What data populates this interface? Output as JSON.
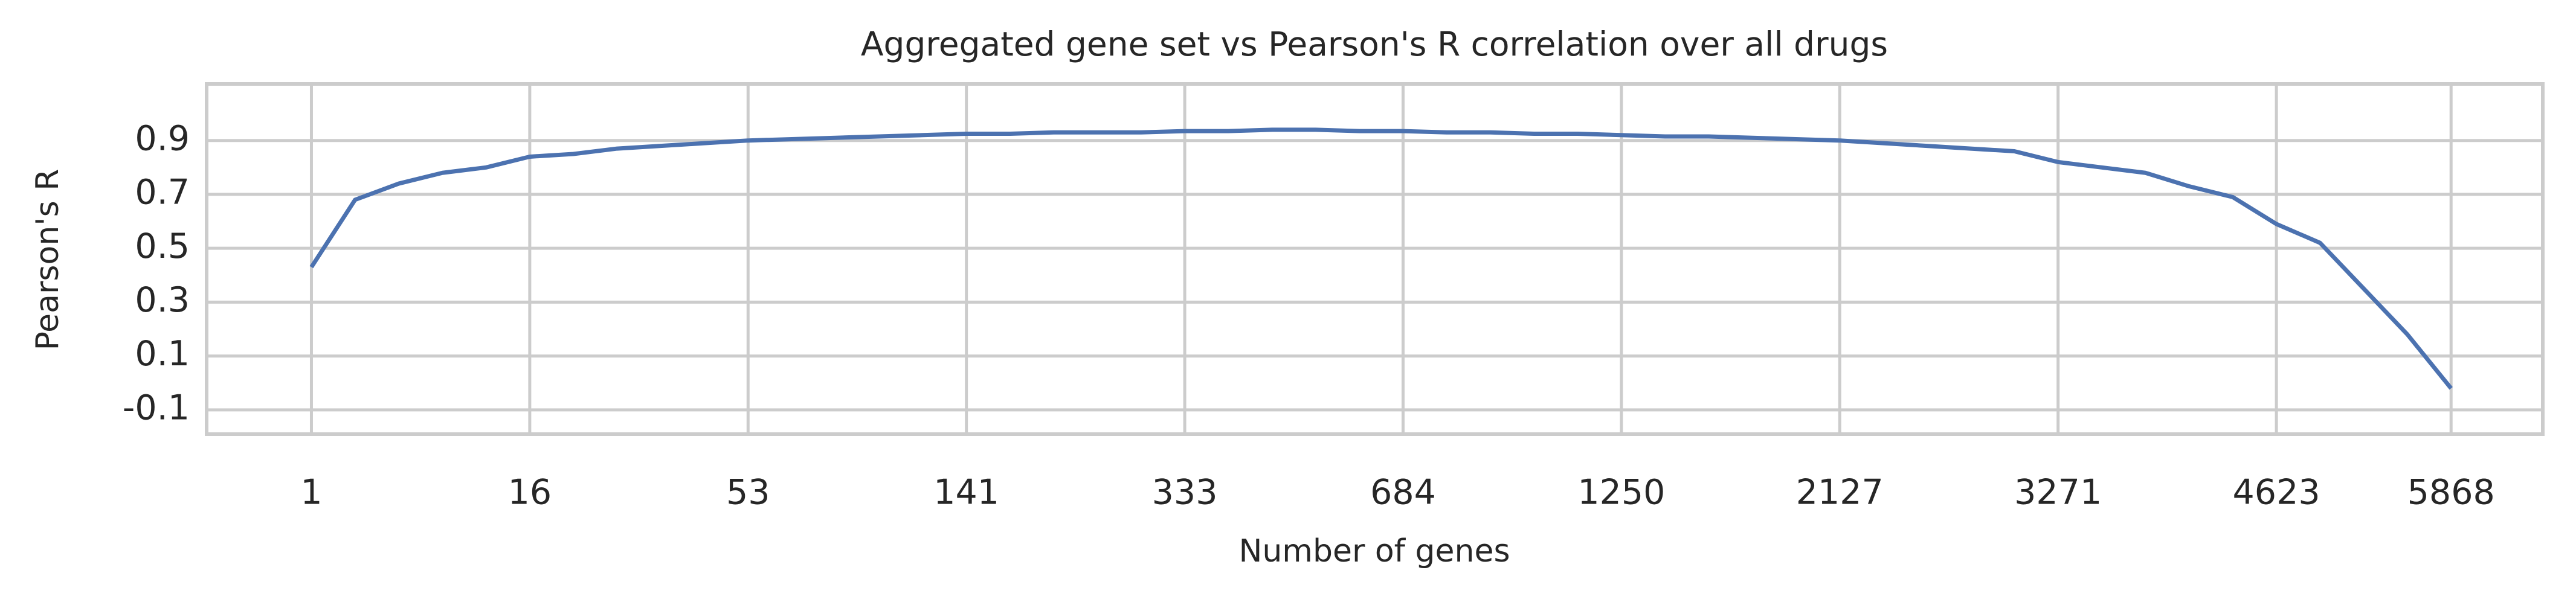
{
  "chart_data": {
    "type": "line",
    "title": "Aggregated gene set vs Pearson's R correlation over all drugs",
    "x_label": "Number of genes",
    "y_label": "Pearson's R",
    "x": [
      0,
      2,
      4,
      6,
      8,
      10,
      12,
      14,
      16,
      18,
      20,
      22,
      24,
      26,
      28,
      30,
      32,
      34,
      36,
      38,
      40,
      42,
      44,
      46,
      48,
      50,
      52,
      54,
      56,
      58,
      60,
      62,
      64,
      66,
      68,
      70,
      72,
      74,
      76,
      78,
      80,
      82,
      84,
      86,
      88,
      90,
      92,
      94,
      96,
      98
    ],
    "series": [
      {
        "color": "#4c72b0",
        "values": [
          0.43,
          0.68,
          0.74,
          0.78,
          0.8,
          0.84,
          0.85,
          0.87,
          0.88,
          0.89,
          0.9,
          0.905,
          0.91,
          0.915,
          0.92,
          0.925,
          0.925,
          0.93,
          0.93,
          0.93,
          0.935,
          0.935,
          0.94,
          0.94,
          0.935,
          0.935,
          0.93,
          0.93,
          0.925,
          0.925,
          0.92,
          0.915,
          0.915,
          0.91,
          0.905,
          0.9,
          0.89,
          0.88,
          0.87,
          0.86,
          0.82,
          0.8,
          0.78,
          0.73,
          0.69,
          0.59,
          0.52,
          0.35,
          0.18,
          -0.02
        ]
      }
    ],
    "xlim": [
      -4.8,
      102.2
    ],
    "xticks": [
      {
        "value": 0,
        "label": "1"
      },
      {
        "value": 10,
        "label": "16"
      },
      {
        "value": 20,
        "label": "53"
      },
      {
        "value": 30,
        "label": "141"
      },
      {
        "value": 40,
        "label": "333"
      },
      {
        "value": 50,
        "label": "684"
      },
      {
        "value": 60,
        "label": "1250"
      },
      {
        "value": 70,
        "label": "2127"
      },
      {
        "value": 80,
        "label": "3271"
      },
      {
        "value": 90,
        "label": "4623"
      },
      {
        "value": 98,
        "label": "5868"
      }
    ],
    "ylim": [
      -0.19,
      1.11
    ],
    "yticks": [
      -0.1,
      0.1,
      0.3,
      0.5,
      0.7,
      0.9
    ],
    "grid": true
  }
}
